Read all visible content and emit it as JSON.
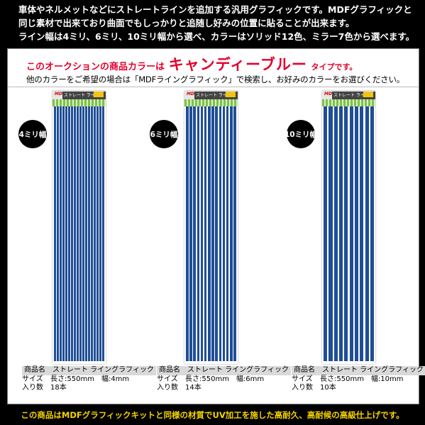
{
  "header": {
    "lines": [
      "車体やネルメットなどにストレートラインを追加する汎用グラフィックです。MDFグラフィックと",
      "同じ素材で出来ており曲面でもしっかりと追随し好みの位置に貼ることが出来ます。",
      "ライン幅は4ミリ、6ミリ、10ミリ幅から選べ、カラーはソリッド12色、ミラー7色から選べます。"
    ]
  },
  "promo": {
    "prefix": "このオークションの商品カラーは",
    "color_name": "キャンディーブルー",
    "suffix": "タイプです。"
  },
  "note": "他のカラーをご希望の場合は「MDFライングラフィック」で検索し、お好みのカラーをお選びください。",
  "sheet_label": {
    "logo": "MDF",
    "mini": "ストレート ライングラフィック"
  },
  "products": [
    {
      "badge": "4ミリ幅",
      "name_key": "商品名",
      "name": "ストレート ライングラフィック",
      "size_key": "サイズ",
      "size": "長さ:550mm　幅:4mm",
      "qty_key": "入り数",
      "qty": "18本",
      "strip_count": 18
    },
    {
      "badge": "6ミリ幅",
      "name_key": "商品名",
      "name": "ストレート ライングラフィック",
      "size_key": "サイズ",
      "size": "長さ:550mm　幅:6mm",
      "qty_key": "入り数",
      "qty": "14本",
      "strip_count": 14
    },
    {
      "badge": "10ミリ幅",
      "name_key": "商品名",
      "name": "ストレート ライングラフィック",
      "size_key": "サイズ",
      "size": "長さ:550mm　幅:10mm",
      "qty_key": "入り数",
      "qty": "10本",
      "strip_count": 10
    }
  ],
  "footer": "この商品はMDFグラフィックキットと同様の材質でUV加工を施した高耐久、高耐候の高級仕上げです。",
  "colors": {
    "background": "#000000",
    "promo_red": "#e4002b",
    "footer_yellow": "#f5d300",
    "strip_blue": "#1f4e96"
  }
}
